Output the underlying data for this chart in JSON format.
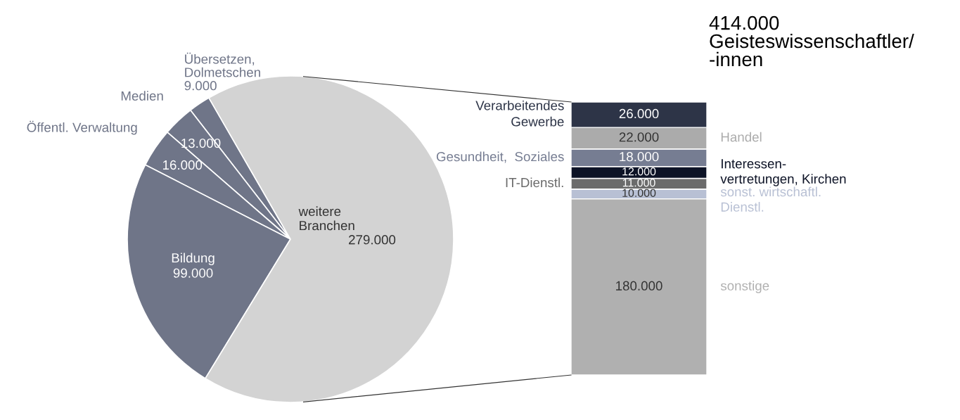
{
  "chart_data": [
    {
      "type": "pie",
      "categories": [
        "Übersetzen,\nDolmetschen",
        "Medien",
        "Öffentl. Verwaltung",
        "Bildung",
        "weitere\nBranchen"
      ],
      "values": [
        9000,
        13000,
        16000,
        99000,
        279000
      ],
      "colors": [
        "#6f7588",
        "#6f7588",
        "#6f7588",
        "#6f7588",
        "#d3d3d3"
      ],
      "value_labels": [
        "9.000",
        "13.000",
        "16.000",
        "99.000",
        "279.000"
      ]
    },
    {
      "type": "bar",
      "stacked": true,
      "categories": [
        null
      ],
      "data_labels": true,
      "title": "414.000\nGeisteswissenschaftler/\n-innen",
      "series": [
        {
          "name": "sonstige",
          "color": "#b0b0b0",
          "values": [
            180000
          ],
          "value_labels": [
            "180.000"
          ]
        },
        {
          "name": "sonst. wirtschaftl.\nDienstl.",
          "color": "#b8c0d4",
          "values": [
            10000
          ],
          "value_labels": [
            "10.000"
          ]
        },
        {
          "name": "IT-Dienstl.",
          "color": "#6b6b6b",
          "values": [
            11000
          ],
          "value_labels": [
            "11.000"
          ]
        },
        {
          "name": "Interessen-\nvertretungen, Kirchen",
          "color": "#0d1326",
          "values": [
            12000
          ],
          "value_labels": [
            "12.000"
          ]
        },
        {
          "name": "Gesundheit,  Soziales",
          "color": "#767d92",
          "values": [
            18000
          ],
          "value_labels": [
            "18.000"
          ]
        },
        {
          "name": "Handel",
          "color": "#ababab",
          "values": [
            22000
          ],
          "value_labels": [
            "22.000"
          ]
        },
        {
          "name": "Verarbeitendes\nGewerbe",
          "color": "#2d3447",
          "values": [
            26000
          ],
          "value_labels": [
            "26.000"
          ]
        }
      ]
    }
  ]
}
